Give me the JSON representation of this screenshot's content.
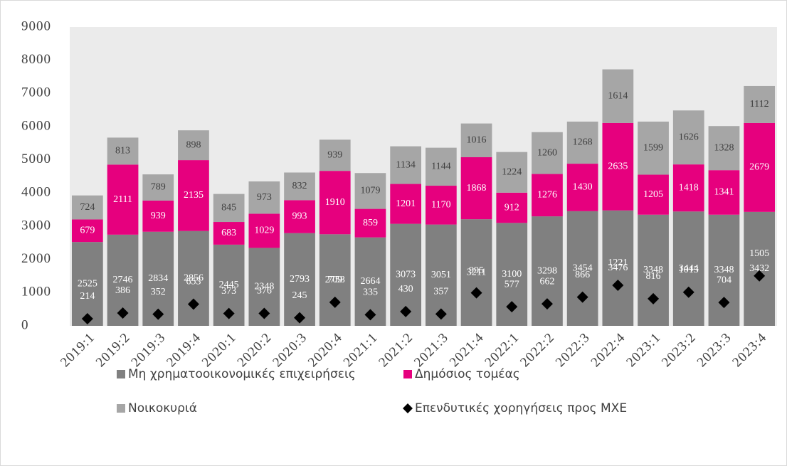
{
  "chart_data": {
    "type": "bar",
    "stacked": true,
    "categories": [
      "2019:1",
      "2019:2",
      "2019:3",
      "2019:4",
      "2020:1",
      "2020:2",
      "2020:3",
      "2020:4",
      "2021:1",
      "2021:2",
      "2021:3",
      "2021:4",
      "2022:1",
      "2022:2",
      "2022:3",
      "2022:4",
      "2023:1",
      "2023:2",
      "2023:3",
      "2023:4"
    ],
    "series": [
      {
        "name": "Μη χρηματοοικονομικές επιχειρήσεις",
        "type": "bar",
        "color": "#808080",
        "label_color": "#ffffff",
        "values": [
          2525,
          2746,
          2834,
          2856,
          2445,
          2348,
          2793,
          2758,
          2664,
          3073,
          3051,
          3211,
          3100,
          3298,
          3454,
          3476,
          3348,
          3444,
          3348,
          3432
        ]
      },
      {
        "name": "Δημόσιος τομέας",
        "type": "bar",
        "color": "#e6007e",
        "label_color": "#ffffff",
        "values": [
          679,
          2111,
          939,
          2135,
          683,
          1029,
          993,
          1910,
          859,
          1201,
          1170,
          1868,
          912,
          1276,
          1430,
          2635,
          1205,
          1418,
          1341,
          2679
        ]
      },
      {
        "name": "Νοικοκυριά",
        "type": "bar",
        "color": "#a6a6a6",
        "label_color": "#404040",
        "values": [
          724,
          813,
          789,
          898,
          845,
          973,
          832,
          939,
          1079,
          1134,
          1144,
          1016,
          1224,
          1260,
          1268,
          1614,
          1599,
          1626,
          1328,
          1112
        ]
      },
      {
        "name": "Επενδυτικές χορηγήσεις προς ΜΧΕ",
        "type": "scatter",
        "marker": "diamond",
        "color": "#000000",
        "label_color": "#ffffff",
        "values": [
          214,
          386,
          352,
          653,
          373,
          376,
          245,
          709,
          335,
          430,
          357,
          995,
          577,
          662,
          866,
          1221,
          816,
          1013,
          704,
          1505
        ]
      }
    ],
    "ylim": [
      0,
      9000
    ],
    "yticks": [
      0,
      1000,
      2000,
      3000,
      4000,
      5000,
      6000,
      7000,
      8000,
      9000
    ],
    "grid": false,
    "plot_background": "#ebebeb",
    "legend": "bottom"
  }
}
